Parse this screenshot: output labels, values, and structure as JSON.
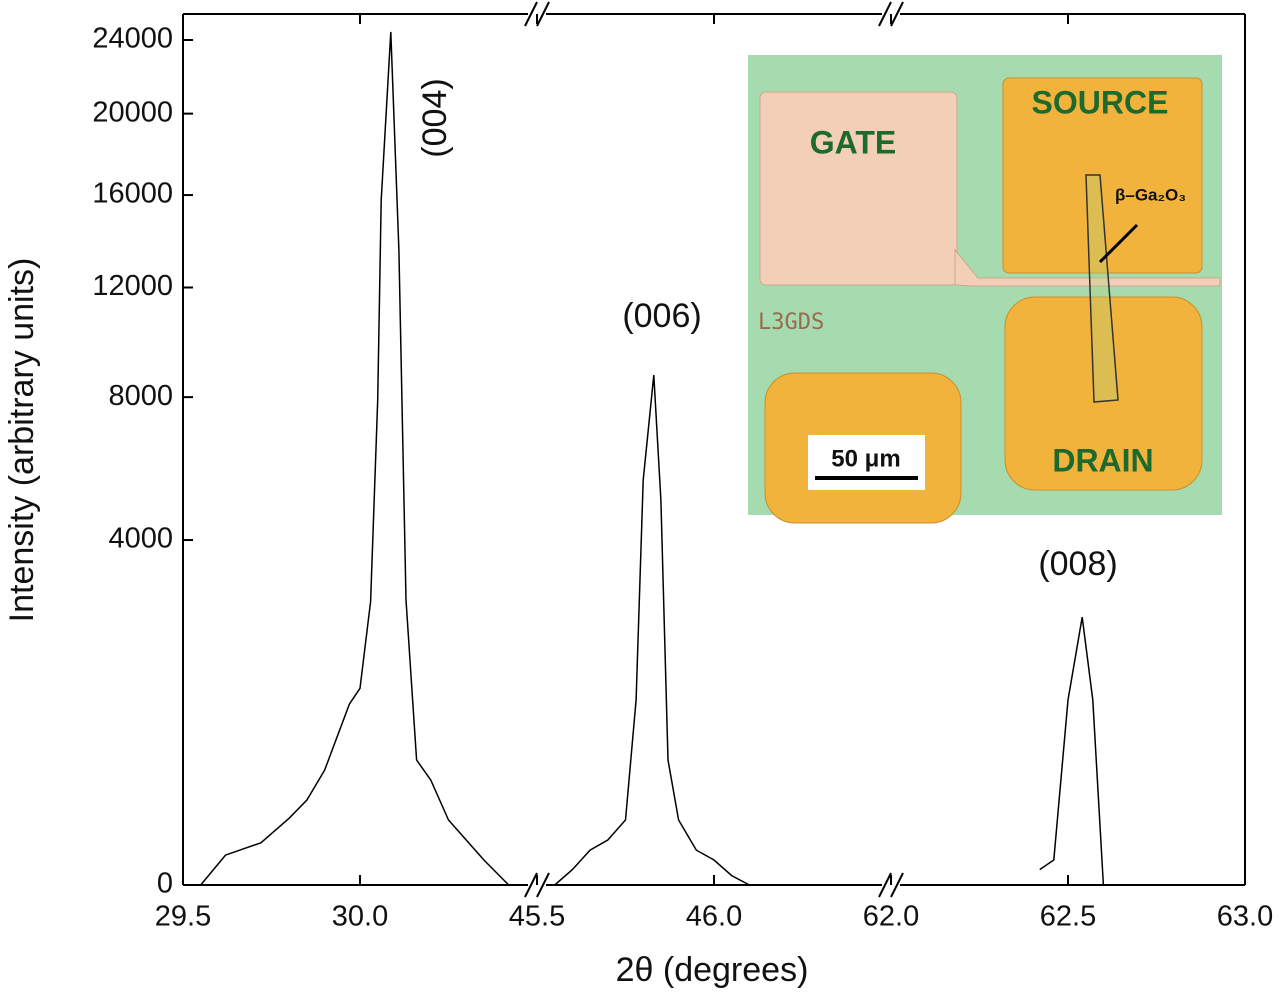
{
  "chart_data": {
    "type": "line",
    "xlabel": "2θ (degrees)",
    "ylabel": "Intensity (arbitrary units)",
    "y_scale": "sqrt",
    "ylim": [
      0,
      25500
    ],
    "yticks": [
      0,
      4000,
      8000,
      12000,
      16000,
      20000,
      24000
    ],
    "x_segments": [
      [
        29.5,
        30.5
      ],
      [
        45.5,
        46.5
      ],
      [
        62.0,
        63.0
      ]
    ],
    "xticks": [
      29.5,
      {
        "value": 30,
        "label": "30.0"
      },
      45.5,
      {
        "value": 46,
        "label": "46.0"
      },
      {
        "value": 62,
        "label": "62.0"
      },
      62.5,
      {
        "value": 63,
        "label": "63.0"
      }
    ],
    "series": [
      {
        "color": "#000000",
        "x": [
          29.55,
          29.62,
          29.72,
          29.8,
          29.85,
          29.9,
          29.97,
          30.0,
          30.03,
          30.05,
          30.06,
          30.087,
          30.11,
          30.13,
          30.16,
          30.2,
          30.25,
          30.3,
          30.35,
          30.42
        ],
        "values": [
          0,
          30,
          60,
          150,
          243,
          443,
          1100,
          1300,
          2700,
          7900,
          15770,
          24460,
          13550,
          2730,
          525,
          370,
          142,
          68,
          21,
          0
        ]
      },
      {
        "color": "#000000",
        "x": [
          45.55,
          45.6,
          45.65,
          45.7,
          45.75,
          45.78,
          45.8,
          45.83,
          45.85,
          45.87,
          45.9,
          45.95,
          46.0,
          46.05,
          46.1
        ],
        "values": [
          0,
          8,
          41,
          68,
          142,
          1150,
          5510,
          8740,
          4980,
          525,
          142,
          41,
          21,
          3,
          0
        ]
      },
      {
        "color": "#000000",
        "x": [
          62.42,
          62.46,
          62.5,
          62.54,
          62.57,
          62.6
        ],
        "values": [
          8,
          21,
          1150,
          2413,
          1150,
          0
        ]
      }
    ],
    "annotations": [
      "(004)",
      "(006)",
      "(008)"
    ],
    "inset": {
      "gate": "GATE",
      "source": "SOURCE",
      "drain": "DRAIN",
      "material": "β–Ga₂O₃",
      "chip_id": "L3GDS",
      "scale_bar": "50 μm"
    }
  }
}
